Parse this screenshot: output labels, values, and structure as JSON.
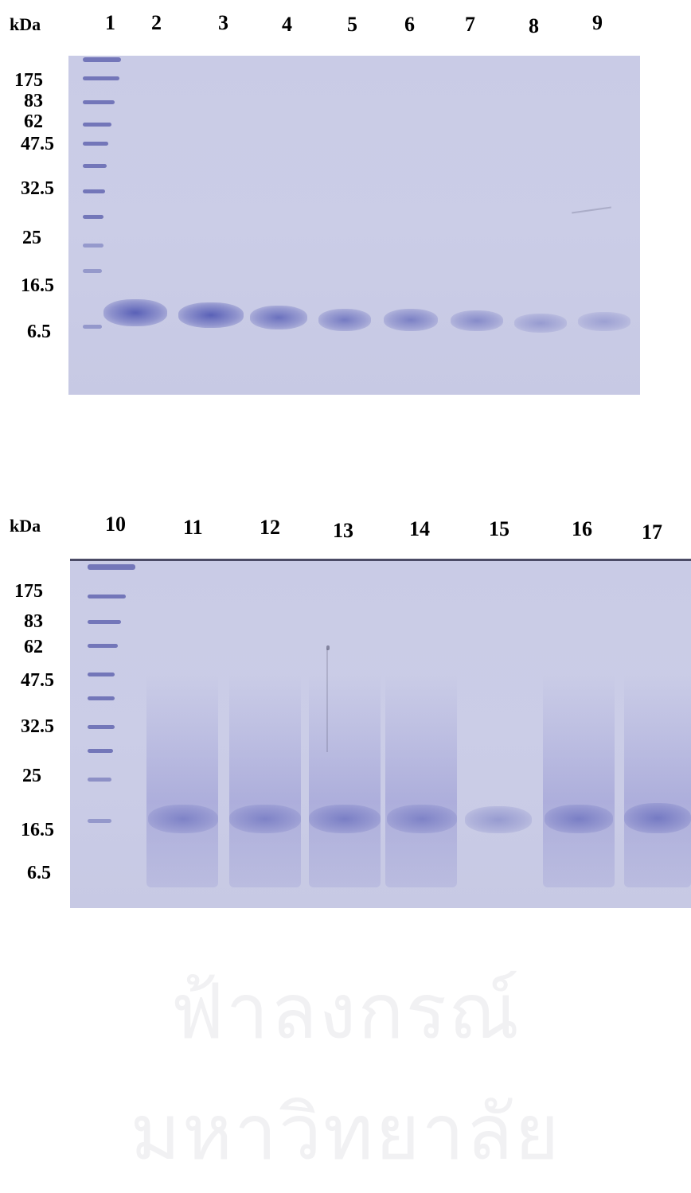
{
  "gel_top": {
    "unit_label": "kDa",
    "lane_labels": [
      "1",
      "2",
      "3",
      "4",
      "5",
      "6",
      "7",
      "8",
      "9"
    ],
    "marker_labels": [
      "175",
      "83",
      "62",
      "47.5",
      "32.5",
      "25",
      "16.5",
      "6.5"
    ]
  },
  "gel_bottom": {
    "unit_label": "kDa",
    "lane_labels": [
      "10",
      "11",
      "12",
      "13",
      "14",
      "15",
      "16",
      "17"
    ],
    "marker_labels": [
      "175",
      "83",
      "62",
      "47.5",
      "32.5",
      "25",
      "16.5",
      "6.5"
    ]
  },
  "colors": {
    "gel_background": "#c9cbe6",
    "band": "#4a50b0",
    "text": "#000000"
  },
  "watermark": {
    "text": "ฟ้าลงกรณ์มหาวิทยาลัย"
  }
}
